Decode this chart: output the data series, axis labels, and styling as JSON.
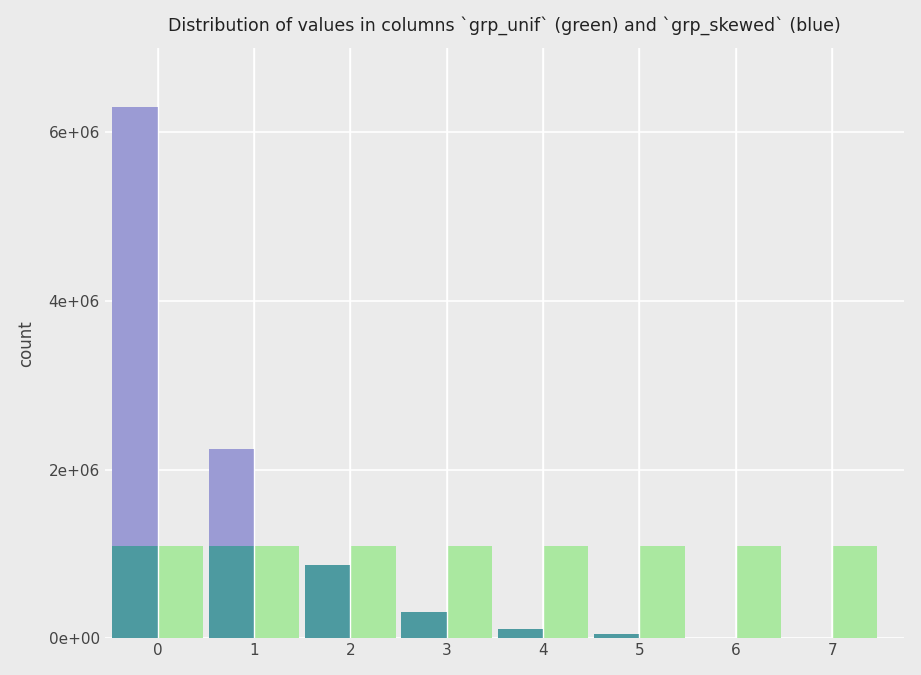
{
  "title": "Distribution of values in columns `grp_unif` (green) and `grp_skewed` (blue)",
  "ylabel": "count",
  "background_color": "#ebebeb",
  "plot_bg_color": "#ebebeb",
  "grid_color": "#ffffff",
  "skewed_purple_color": "#9b9bd4",
  "skewed_teal_color": "#4d9aa0",
  "unif_green_color": "#aae8a0",
  "positions": [
    0,
    1,
    2,
    3,
    4,
    5,
    6,
    7
  ],
  "grp_skewed_full": [
    6300000,
    2250000,
    0,
    0,
    0,
    0,
    0,
    0
  ],
  "grp_skewed_teal": [
    1100000,
    1100000,
    870000,
    310000,
    115000,
    55000,
    5000,
    0
  ],
  "grp_unif": [
    1100000,
    1100000,
    1100000,
    1100000,
    1100000,
    1100000,
    1100000,
    1100000
  ],
  "ylim_max": 7000000,
  "yticks": [
    0,
    2000000,
    4000000,
    6000000
  ],
  "ytick_labels": [
    "0e+00",
    "2e+06",
    "4e+06",
    "6e+06"
  ],
  "bar_width": 0.47
}
